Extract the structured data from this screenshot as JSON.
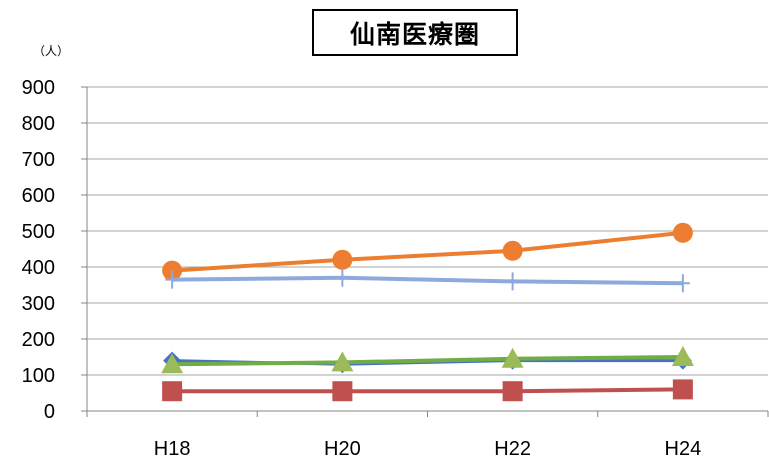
{
  "chart_data": {
    "type": "line",
    "title": "仙南医療圏",
    "ylabel": "（人）",
    "categories": [
      "H18",
      "H20",
      "H22",
      "H24"
    ],
    "ylim": [
      0,
      900
    ],
    "yticks": [
      0,
      100,
      200,
      300,
      400,
      500,
      600,
      700,
      800,
      900
    ],
    "grid": true,
    "series": [
      {
        "values": [
          390,
          420,
          445,
          495
        ],
        "color": "#ED7D31",
        "marker": "circle"
      },
      {
        "values": [
          365,
          370,
          360,
          355
        ],
        "color": "#8EA9DB",
        "marker": "plus"
      },
      {
        "values": [
          140,
          130,
          140,
          140
        ],
        "color": "#4472C4",
        "marker": "diamond"
      },
      {
        "values": [
          130,
          135,
          145,
          150
        ],
        "color": "#70AD47",
        "marker": "triangle",
        "fill": "#9BBB59"
      },
      {
        "values": [
          55,
          55,
          55,
          60
        ],
        "color": "#C0504D",
        "marker": "square"
      }
    ]
  }
}
